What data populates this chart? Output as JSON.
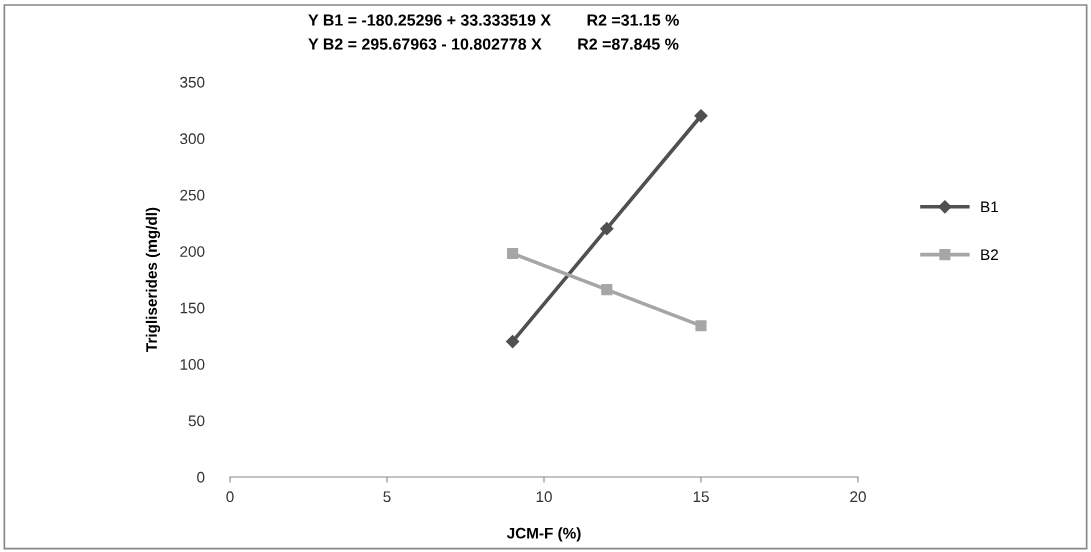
{
  "chart_data": {
    "type": "line",
    "xlabel": "JCM-F (%)",
    "ylabel": "Trigliserides (mg/dl)",
    "annotations": [
      "Y B1 = -180.25296 + 33.333519 X        R2 =31.15 %",
      "Y B2 = 295.67963 - 10.802778 X        R2 =87.845 %"
    ],
    "x": [
      9,
      12,
      15
    ],
    "series": [
      {
        "name": "B1",
        "color": "#505050",
        "values": [
          120,
          220,
          320
        ],
        "marker": "diamond"
      },
      {
        "name": "B2",
        "color": "#a6a6a6",
        "values": [
          198,
          166,
          134
        ],
        "marker": "square"
      }
    ],
    "xlim": [
      0,
      20
    ],
    "xticks": [
      0,
      5,
      10,
      15,
      20
    ],
    "ylim": [
      0,
      350
    ],
    "yticks": [
      0,
      50,
      100,
      150,
      200,
      250,
      300,
      350
    ],
    "grid": false,
    "legend": "right",
    "line_style": "solid"
  }
}
